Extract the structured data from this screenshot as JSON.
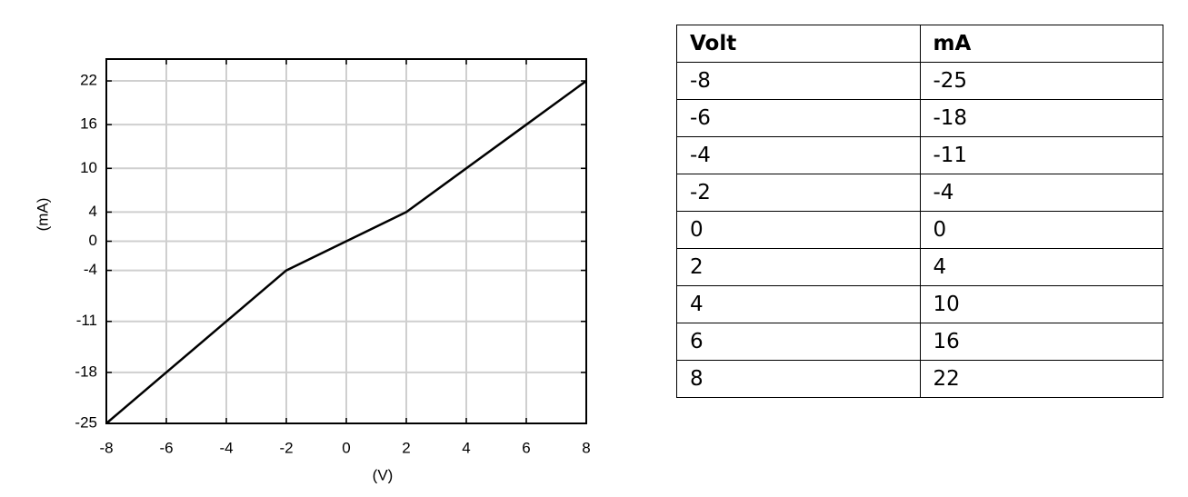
{
  "chart_data": {
    "type": "line",
    "xlabel": "(V)",
    "ylabel": "(mA)",
    "x": [
      -8,
      -6,
      -4,
      -2,
      0,
      2,
      4,
      6,
      8
    ],
    "values": [
      -25,
      -18,
      -11,
      -4,
      0,
      4,
      10,
      16,
      22
    ],
    "color": "#000000",
    "xlim": [
      -8,
      8
    ],
    "ylim": [
      -25,
      25
    ],
    "xticks": [
      -8,
      -6,
      -4,
      -2,
      0,
      2,
      4,
      6,
      8
    ],
    "yticks": [
      -25,
      -18,
      -11,
      -4,
      0,
      4,
      10,
      16,
      22
    ],
    "grid": true
  },
  "table": {
    "headers": [
      "Volt",
      "mA"
    ],
    "rows": [
      [
        -8,
        -25
      ],
      [
        -6,
        -18
      ],
      [
        -4,
        -11
      ],
      [
        -2,
        -4
      ],
      [
        0,
        0
      ],
      [
        2,
        4
      ],
      [
        4,
        10
      ],
      [
        6,
        16
      ],
      [
        8,
        22
      ]
    ]
  }
}
